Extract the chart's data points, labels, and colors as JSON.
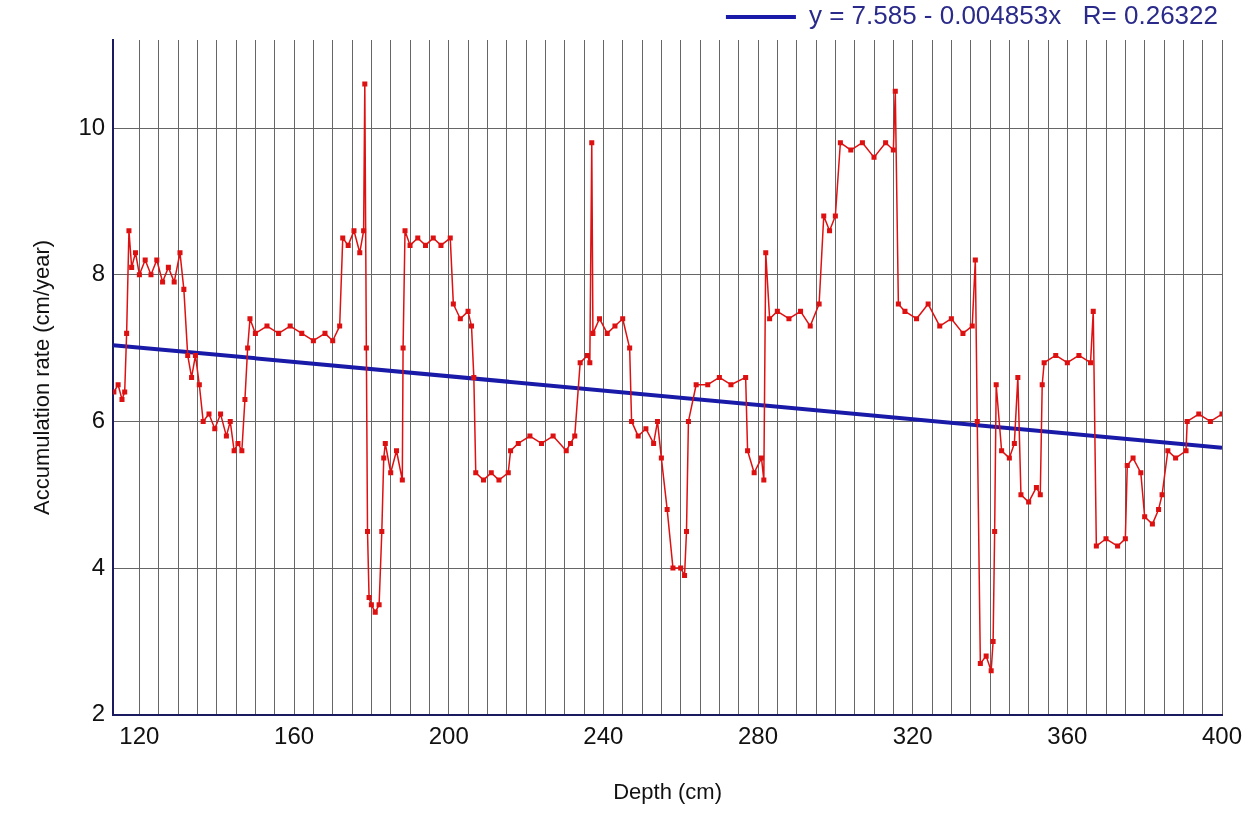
{
  "chart_data": {
    "type": "line",
    "xlabel": "Depth (cm)",
    "ylabel": "Accumulation rate (cm/year)",
    "xlim": [
      113.2,
      400
    ],
    "ylim": [
      2,
      11.2
    ],
    "xticks": [
      120,
      {
        "value": 125,
        "label": null
      },
      {
        "value": 130,
        "label": null
      },
      {
        "value": 135,
        "label": null
      },
      {
        "value": 140,
        "label": null
      },
      {
        "value": 145,
        "label": null
      },
      {
        "value": 150,
        "label": null
      },
      {
        "value": 155,
        "label": null
      },
      160,
      {
        "value": 165,
        "label": null
      },
      {
        "value": 170,
        "label": null
      },
      {
        "value": 175,
        "label": null
      },
      {
        "value": 180,
        "label": null
      },
      {
        "value": 185,
        "label": null
      },
      {
        "value": 190,
        "label": null
      },
      {
        "value": 195,
        "label": null
      },
      200,
      {
        "value": 205,
        "label": null
      },
      {
        "value": 210,
        "label": null
      },
      {
        "value": 215,
        "label": null
      },
      {
        "value": 220,
        "label": null
      },
      {
        "value": 225,
        "label": null
      },
      {
        "value": 230,
        "label": null
      },
      {
        "value": 235,
        "label": null
      },
      240,
      {
        "value": 245,
        "label": null
      },
      {
        "value": 250,
        "label": null
      },
      {
        "value": 255,
        "label": null
      },
      {
        "value": 260,
        "label": null
      },
      {
        "value": 265,
        "label": null
      },
      {
        "value": 270,
        "label": null
      },
      {
        "value": 275,
        "label": null
      },
      280,
      {
        "value": 285,
        "label": null
      },
      {
        "value": 290,
        "label": null
      },
      {
        "value": 295,
        "label": null
      },
      {
        "value": 300,
        "label": null
      },
      {
        "value": 305,
        "label": null
      },
      {
        "value": 310,
        "label": null
      },
      {
        "value": 315,
        "label": null
      },
      320,
      {
        "value": 325,
        "label": null
      },
      {
        "value": 330,
        "label": null
      },
      {
        "value": 335,
        "label": null
      },
      {
        "value": 340,
        "label": null
      },
      {
        "value": 345,
        "label": null
      },
      {
        "value": 350,
        "label": null
      },
      {
        "value": 355,
        "label": null
      },
      360,
      {
        "value": 365,
        "label": null
      },
      {
        "value": 370,
        "label": null
      },
      {
        "value": 375,
        "label": null
      },
      {
        "value": 380,
        "label": null
      },
      {
        "value": 385,
        "label": null
      },
      {
        "value": 390,
        "label": null
      },
      {
        "value": 395,
        "label": null
      },
      400
    ],
    "yticks": [
      2,
      4,
      6,
      8,
      10
    ],
    "grid": true,
    "legend": "top right",
    "series": [
      {
        "color": "#dd1111",
        "marker": "square",
        "x": [
          113.4,
          114.5,
          115.5,
          116.2,
          116.7,
          117.3,
          118,
          119,
          120,
          121.5,
          123,
          124.5,
          126,
          127.5,
          129,
          130.5,
          131.5,
          132.5,
          133.5,
          134.5,
          135.5,
          136.5,
          138,
          139.5,
          141,
          142.5,
          143.5,
          144.5,
          145.5,
          146.5,
          147.3,
          148,
          148.6,
          150,
          153,
          156,
          159,
          162,
          165,
          168,
          170,
          171.8,
          172.6,
          174,
          175.5,
          177,
          178,
          178.3,
          178.7,
          179,
          179.4,
          180,
          181,
          182,
          182.7,
          183.2,
          183.6,
          185,
          186.5,
          188,
          188.2,
          188.7,
          190,
          192,
          194,
          196,
          198,
          200.4,
          201.2,
          203,
          205,
          205.9,
          206.5,
          207,
          209,
          211,
          213,
          215.4,
          216,
          218,
          221,
          224,
          227,
          230.4,
          231.5,
          232.6,
          234,
          235.9,
          236.5,
          237,
          237.3,
          239,
          241,
          243,
          245,
          246.8,
          247.3,
          249,
          251,
          253,
          254,
          255,
          256.5,
          258,
          260,
          261,
          261.5,
          262,
          264,
          267,
          270,
          273,
          276.8,
          277.3,
          279,
          280.9,
          281.5,
          282,
          283,
          285,
          288,
          291,
          293.5,
          295.8,
          297,
          298.5,
          300,
          301.3,
          304,
          307,
          310,
          313,
          315,
          315.5,
          316.3,
          318,
          321,
          324,
          327,
          330,
          333,
          335.4,
          336.2,
          336.7,
          337.5,
          339,
          340.3,
          340.8,
          341.2,
          341.6,
          343,
          345,
          346.3,
          347.2,
          348,
          350,
          352,
          353,
          353.5,
          354,
          357,
          360,
          363,
          366,
          366.7,
          367.5,
          370,
          373,
          375,
          375.5,
          377,
          379,
          380,
          382,
          383.6,
          384.5,
          386,
          388,
          390.7,
          391,
          394,
          397,
          400
        ],
        "values": [
          6.4,
          6.5,
          6.3,
          6.4,
          7.2,
          8.6,
          8.1,
          8.3,
          8.0,
          8.2,
          8.0,
          8.2,
          7.9,
          8.1,
          7.9,
          8.3,
          7.8,
          6.9,
          6.6,
          6.9,
          6.5,
          6.0,
          6.1,
          5.9,
          6.1,
          5.8,
          6.0,
          5.6,
          5.7,
          5.6,
          6.3,
          7.0,
          7.4,
          7.2,
          7.3,
          7.2,
          7.3,
          7.2,
          7.1,
          7.2,
          7.1,
          7.3,
          8.5,
          8.4,
          8.6,
          8.3,
          8.6,
          10.6,
          7.0,
          4.5,
          3.6,
          3.5,
          3.4,
          3.5,
          4.5,
          5.5,
          5.7,
          5.3,
          5.6,
          5.2,
          7.0,
          8.6,
          8.4,
          8.5,
          8.4,
          8.5,
          8.4,
          8.5,
          7.6,
          7.4,
          7.5,
          7.3,
          6.6,
          5.3,
          5.2,
          5.3,
          5.2,
          5.3,
          5.6,
          5.7,
          5.8,
          5.7,
          5.8,
          5.6,
          5.7,
          5.8,
          6.8,
          6.9,
          6.8,
          9.8,
          7.2,
          7.4,
          7.2,
          7.3,
          7.4,
          7.0,
          6.0,
          5.8,
          5.9,
          5.7,
          6.0,
          5.5,
          4.8,
          4.0,
          4.0,
          3.9,
          4.5,
          6.0,
          6.5,
          6.5,
          6.6,
          6.5,
          6.6,
          5.6,
          5.3,
          5.5,
          5.2,
          8.3,
          7.4,
          7.5,
          7.4,
          7.5,
          7.3,
          7.6,
          8.8,
          8.6,
          8.8,
          9.8,
          9.7,
          9.8,
          9.6,
          9.8,
          9.7,
          10.5,
          7.6,
          7.5,
          7.4,
          7.6,
          7.3,
          7.4,
          7.2,
          7.3,
          8.2,
          6.0,
          2.7,
          2.8,
          2.6,
          3.0,
          4.5,
          6.5,
          5.6,
          5.5,
          5.7,
          6.6,
          5.0,
          4.9,
          5.1,
          5.0,
          6.5,
          6.8,
          6.9,
          6.8,
          6.9,
          6.8,
          7.5,
          4.3,
          4.4,
          4.3,
          4.4,
          5.4,
          5.5,
          5.3,
          4.7,
          4.6,
          4.8,
          5.0,
          5.6,
          5.5,
          5.6,
          6.0,
          6.1,
          6.0,
          6.1
        ]
      },
      {
        "name": "y = 7.585 - 0.004853x   R= 0.26322",
        "color": "#1a1aa8",
        "marker": "none",
        "x": [
          113.2,
          400
        ],
        "values": [
          7.04,
          5.64
        ]
      }
    ]
  }
}
